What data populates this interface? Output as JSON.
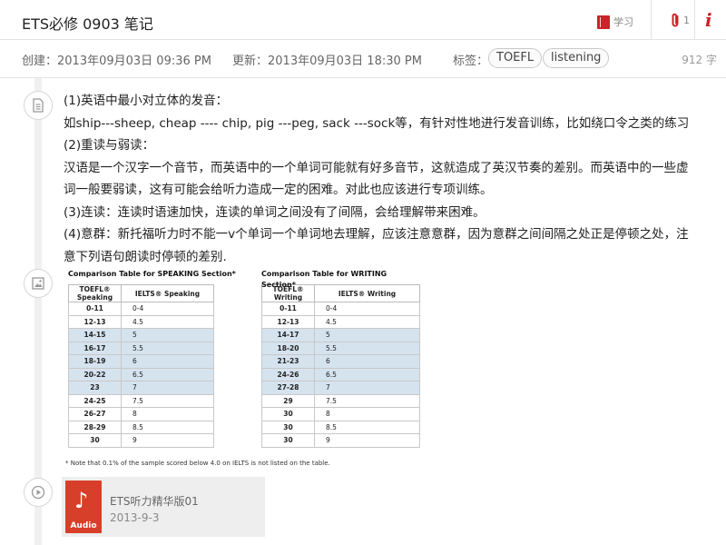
{
  "header": {
    "title": "ETS必修 0903 笔记",
    "notebook_label": "学习",
    "attachment_count": "1",
    "info_label": "i"
  },
  "meta": {
    "created": "创建：2013年09月03日  09:36 PM",
    "updated": "更新：2013年09月03日 18:30 PM",
    "tags_label": "标签：",
    "tags": [
      "TOEFL",
      "listening"
    ],
    "word_count": "912 字"
  },
  "note": {
    "lines": [
      " (1)英语中最小对立体的发音：",
      "如ship---sheep, cheap ---- chip, pig ---peg, sack ---sock等，有针对性地进行发音训练，比如绕口令之类的练习",
      "(2)重读与弱读：",
      "汉语是一个汉字一个音节，而英语中的一个单词可能就有好多音节，这就造成了英汉节奏的差别。而英语中的一些虚",
      "词一般要弱读，这有可能会给听力造成一定的困难。对此也应该进行专项训练。",
      "(3)连读：连读时语速加快，连读的单词之间没有了间隔，会给理解带来困难。",
      "(4)意群：新托福听力时不能一v个单词一个单词地去理解，应该注意意群，因为意群之间间隔之处正是停顿之处，注",
      "意下列语句朗读时停顿的差别."
    ]
  },
  "image": {
    "speaking": {
      "title": "Comparison Table for SPEAKING Section*",
      "headers": [
        "TOEFL® Speaking",
        "IELTS® Speaking"
      ],
      "rows": [
        [
          "0-11",
          "0-4"
        ],
        [
          "12-13",
          "4.5"
        ],
        [
          "14-15",
          "5"
        ],
        [
          "16-17",
          "5.5"
        ],
        [
          "18-19",
          "6"
        ],
        [
          "20-22",
          "6.5"
        ],
        [
          "23",
          "7"
        ],
        [
          "24-25",
          "7.5"
        ],
        [
          "26-27",
          "8"
        ],
        [
          "28-29",
          "8.5"
        ],
        [
          "30",
          "9"
        ]
      ]
    },
    "writing": {
      "title": "Comparison Table for WRITING Section*",
      "headers": [
        "TOEFL® Writing",
        "IELTS® Writing"
      ],
      "rows": [
        [
          "0-11",
          "0-4"
        ],
        [
          "12-13",
          "4.5"
        ],
        [
          "14-17",
          "5"
        ],
        [
          "18-20",
          "5.5"
        ],
        [
          "21-23",
          "6"
        ],
        [
          "24-26",
          "6.5"
        ],
        [
          "27-28",
          "7"
        ],
        [
          "29",
          "7.5"
        ],
        [
          "30",
          "8"
        ],
        [
          "30",
          "8.5"
        ],
        [
          "30",
          "9"
        ]
      ]
    },
    "highlight_rows": [
      2,
      3,
      4,
      5,
      6
    ],
    "footnote": "* Note that 0.1% of the sample scored below 4.0 on IELTS is not listed on the table."
  },
  "audio": {
    "icon_label": "Audio",
    "name": "ETS听力精华版01",
    "date": "2013-9-3"
  },
  "colors": {
    "accent": "#c9242b",
    "audio_icon": "#d83f2a",
    "table_highlight": "#d5e3ef"
  },
  "icons": {
    "notebook": "notebook-icon",
    "attachment": "paperclip-icon",
    "info": "info-icon",
    "text_node": "document-icon",
    "image_node": "image-icon",
    "audio_node": "play-icon",
    "audio_file": "music-note-icon"
  }
}
